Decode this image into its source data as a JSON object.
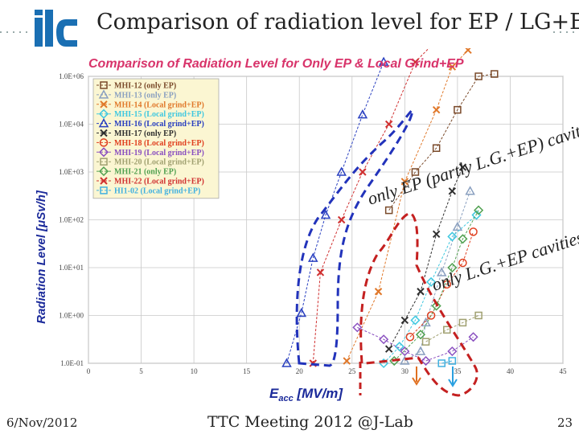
{
  "slide": {
    "title": "Comparison of radiation level for EP / LG+EP",
    "logo_text": "ilc",
    "footer_date": "6/Nov/2012",
    "footer_center": "TTC Meeting 2012 @J-Lab",
    "page_number": "23"
  },
  "chart_data": {
    "type": "scatter",
    "title": "Comparison of Radiation Level for Only EP & Local Grind+EP",
    "xlabel_main": "E",
    "xlabel_sub": "acc",
    "xlabel_rest": " [MV/m]",
    "ylabel": "Radiation Level [μSv/h]",
    "x_ticks": [
      "0",
      "5",
      "10",
      "15",
      "20",
      "25",
      "30",
      "35",
      "40",
      "45"
    ],
    "y_ticks": [
      "1.0E+06",
      "1.0E+04",
      "1.0E+03",
      "1.0E+02",
      "1.0E+01",
      "1.0E+00",
      "1.0E-01"
    ],
    "xlim": [
      0,
      45
    ],
    "grid": true,
    "legend_position": "top-left",
    "annotations": {
      "ep_region": "only EP (partly L.G.+EP) cavities",
      "lg_region": "only L.G.+EP cavities"
    },
    "series": [
      {
        "name": "MHI-12 (only EP)",
        "color": "#7a4a2a",
        "marker": "square",
        "dash": true,
        "points": [
          [
            28.5,
            3.2
          ],
          [
            31,
            4
          ],
          [
            33,
            4.5
          ],
          [
            35,
            5.3
          ],
          [
            37,
            6.0
          ],
          [
            38.5,
            6.05
          ]
        ]
      },
      {
        "name": "MHI-13 (only EP)",
        "color": "#8aa0c0",
        "marker": "triangle",
        "dash": true,
        "points": [
          [
            30,
            0.05
          ],
          [
            31.5,
            0.25
          ],
          [
            32,
            0.85
          ],
          [
            33.5,
            1.9
          ],
          [
            35,
            2.85
          ],
          [
            36.2,
            3.6
          ]
        ]
      },
      {
        "name": "MHI-14 (Local grind+EP)",
        "color": "#e0782a",
        "marker": "x",
        "dash": true,
        "points": [
          [
            24.5,
            0.05
          ],
          [
            27.5,
            1.5
          ],
          [
            30,
            3.8
          ],
          [
            33,
            5.3
          ],
          [
            34.5,
            6.2
          ],
          [
            36,
            6.55
          ]
        ]
      },
      {
        "name": "MHI-15 (Local grind+EP)",
        "color": "#40c8e0",
        "marker": "diamond",
        "dash": true,
        "points": [
          [
            28,
            0.0
          ],
          [
            29.5,
            0.35
          ],
          [
            31,
            0.9
          ],
          [
            32.5,
            1.7
          ],
          [
            34.5,
            2.65
          ],
          [
            36.8,
            3.1
          ]
        ]
      },
      {
        "name": "MHI-16 (Local grind+EP)",
        "color": "#2a40c0",
        "marker": "triangle",
        "dash": true,
        "points": [
          [
            18.8,
            0.0
          ],
          [
            20.2,
            1.05
          ],
          [
            21.3,
            2.2
          ],
          [
            22.5,
            3.1
          ],
          [
            24,
            4.0
          ],
          [
            26,
            5.2
          ],
          [
            28,
            6.3
          ]
        ]
      },
      {
        "name": "MHI-17 (only EP)",
        "color": "#303030",
        "marker": "x",
        "dash": true,
        "points": [
          [
            28.5,
            0.3
          ],
          [
            30,
            0.9
          ],
          [
            31.5,
            1.5
          ],
          [
            33,
            2.7
          ],
          [
            34.5,
            3.6
          ],
          [
            35.5,
            4.1
          ]
        ]
      },
      {
        "name": "MHI-18 (Local grind+EP)",
        "color": "#e04020",
        "marker": "circle",
        "dash": true,
        "points": [
          [
            30.5,
            0.55
          ],
          [
            32.5,
            1.0
          ],
          [
            34,
            1.65
          ],
          [
            35.5,
            2.1
          ],
          [
            36.5,
            2.75
          ]
        ]
      },
      {
        "name": "MHI-19 (Local grind+EP)",
        "color": "#8a50c0",
        "marker": "diamond",
        "dash": true,
        "points": [
          [
            25.5,
            0.75
          ],
          [
            28,
            0.5
          ],
          [
            30,
            0.25
          ],
          [
            32,
            0.05
          ],
          [
            34.5,
            0.25
          ],
          [
            36.5,
            0.55
          ]
        ]
      },
      {
        "name": "MHI-20 (Local grind+EP)",
        "color": "#a0a070",
        "marker": "square",
        "dash": true,
        "points": [
          [
            32,
            0.45
          ],
          [
            34,
            0.7
          ],
          [
            35.5,
            0.85
          ],
          [
            37,
            1.0
          ]
        ]
      },
      {
        "name": "MHI-21 (only EP)",
        "color": "#50a050",
        "marker": "diamond",
        "dash": true,
        "points": [
          [
            29,
            0.05
          ],
          [
            31.5,
            0.6
          ],
          [
            33,
            1.2
          ],
          [
            34.5,
            2.0
          ],
          [
            35.5,
            2.6
          ],
          [
            37,
            3.2
          ]
        ]
      },
      {
        "name": "MHI-22 (Local grind+EP)",
        "color": "#d03030",
        "marker": "x",
        "dash": true,
        "points": [
          [
            21.3,
            0.0
          ],
          [
            22,
            1.9
          ],
          [
            24,
            3.0
          ],
          [
            26,
            4.0
          ],
          [
            28.5,
            5.0
          ],
          [
            31,
            6.3
          ],
          [
            33,
            6.75
          ]
        ]
      },
      {
        "name": "HI1-02 (Local grind+EP)",
        "color": "#40b0e0",
        "marker": "square",
        "dash": true,
        "points": [
          [
            33.5,
            0.0
          ],
          [
            34.5,
            0.05
          ]
        ]
      }
    ]
  }
}
